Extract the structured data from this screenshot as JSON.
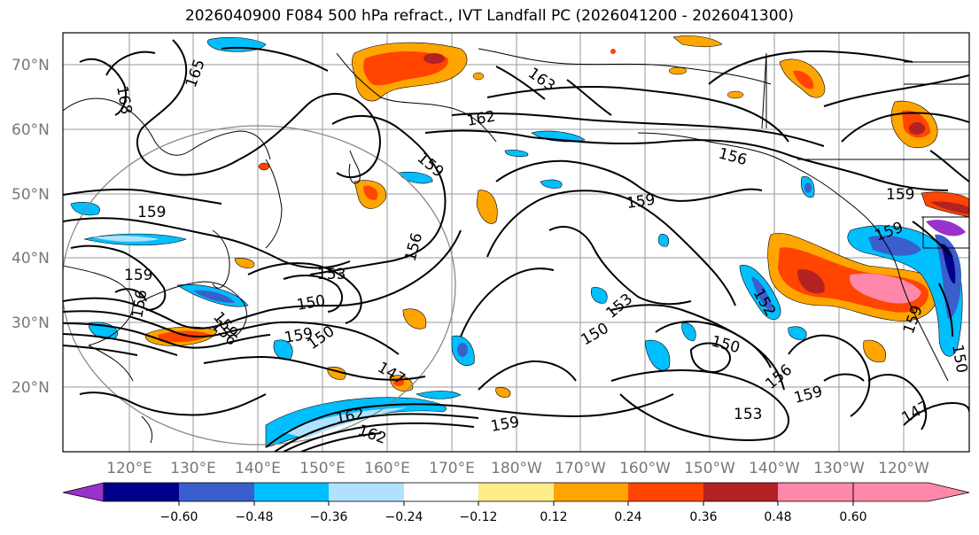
{
  "title": "2026040900 F084 500 hPa refract., IVT Landfall PC (2026041200 - 2026041300)",
  "lat_labels": [
    "70°N",
    "60°N",
    "50°N",
    "40°N",
    "30°N",
    "20°N"
  ],
  "lon_labels": [
    "120°E",
    "130°E",
    "140°E",
    "150°E",
    "160°E",
    "170°E",
    "180°W",
    "170°W",
    "160°W",
    "150°W",
    "140°W",
    "130°W",
    "120°W"
  ],
  "colorbar": {
    "colors": [
      "#9932cc",
      "#00008b",
      "#3a5fcd",
      "#00bfff",
      "#b0e2ff",
      "#ffffff",
      "#ffec8b",
      "#ffa500",
      "#ff4500",
      "#b22222",
      "#ff88aa"
    ],
    "tick_labels": [
      "−0.60",
      "−0.48",
      "−0.36",
      "−0.24",
      "−0.12",
      "0.12",
      "0.24",
      "0.36",
      "0.48",
      "0.60"
    ]
  },
  "contour_labels": [
    "165",
    "168",
    "163",
    "162",
    "159",
    "156",
    "159",
    "159",
    "159",
    "159",
    "153",
    "156",
    "150",
    "156",
    "159",
    "150",
    "147",
    "153",
    "150",
    "150",
    "159",
    "162",
    "162",
    "159",
    "156",
    "153",
    "159",
    "147",
    "156",
    "159",
    "152",
    "159",
    "150"
  ]
}
